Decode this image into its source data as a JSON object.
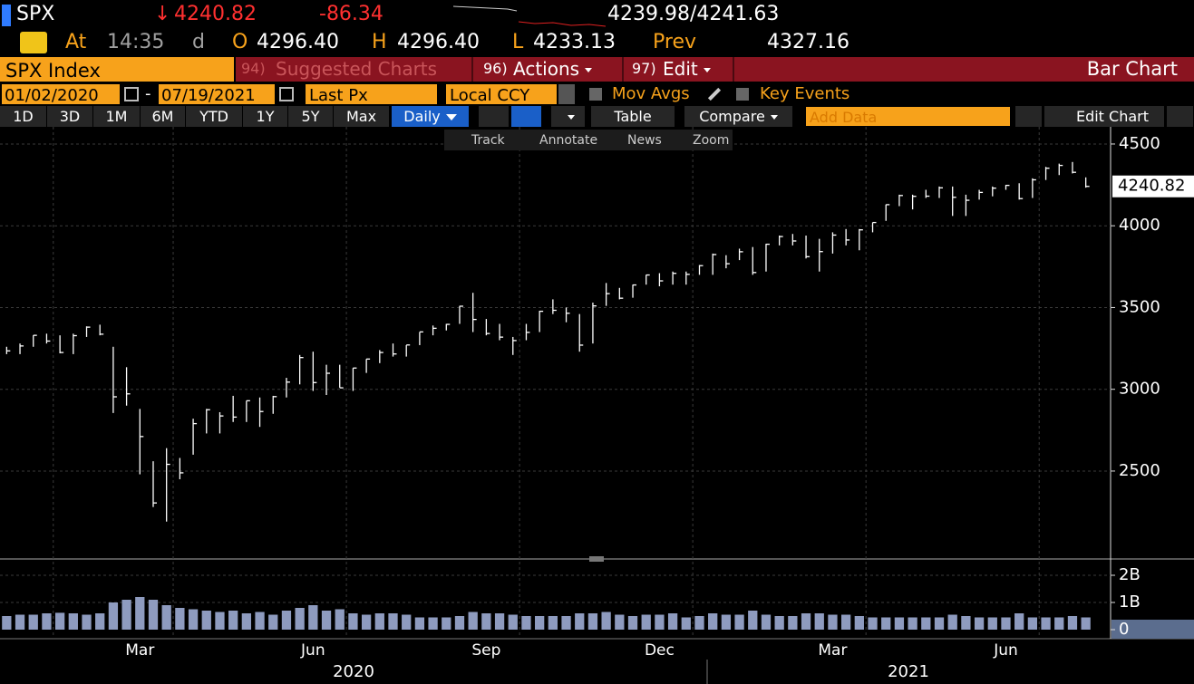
{
  "header": {
    "ticker": "SPX",
    "direction": "↓",
    "last": "4240.82",
    "change": "-86.34",
    "bid_ask": "4239.98/4241.63",
    "at": "At",
    "time": "14:35",
    "time_unit": "d",
    "open_label": "O",
    "open": "4296.40",
    "high_label": "H",
    "high": "4296.40",
    "low_label": "L",
    "low": "4233.13",
    "prev_label": "Prev",
    "prev": "4327.16"
  },
  "menu": {
    "security": "SPX Index",
    "suggested_num": "94)",
    "suggested": "Suggested Charts",
    "actions_num": "96)",
    "actions": "Actions",
    "edit_num": "97)",
    "edit": "Edit",
    "chart_kind": "Bar Chart"
  },
  "settings": {
    "start_date": "01/02/2020",
    "dash": "-",
    "end_date": "07/19/2021",
    "field": "Last Px",
    "currency": "Local CCY",
    "mov_avgs": "Mov Avgs",
    "key_events": "Key Events"
  },
  "toolbar": {
    "ranges": [
      "1D",
      "3D",
      "1M",
      "6M",
      "YTD",
      "1Y",
      "5Y",
      "Max"
    ],
    "frequency": "Daily",
    "table": "Table",
    "compare": "Compare",
    "add_data": "Add Data",
    "edit_chart": "Edit Chart"
  },
  "tools": [
    "Track",
    "Annotate",
    "News",
    "Zoom"
  ],
  "chart_data": [
    {
      "type": "ohlc",
      "color": "#ffffff",
      "categories": [
        null,
        null,
        null,
        null,
        null,
        null,
        null,
        null,
        null,
        null,
        "Mar",
        null,
        null,
        null,
        null,
        null,
        null,
        null,
        null,
        null,
        null,
        null,
        null,
        "Jun",
        null,
        null,
        null,
        null,
        null,
        null,
        null,
        null,
        null,
        null,
        null,
        null,
        "Sep",
        null,
        null,
        null,
        null,
        null,
        null,
        null,
        null,
        null,
        null,
        null,
        null,
        "Dec",
        null,
        null,
        null,
        null,
        null,
        null,
        null,
        null,
        null,
        null,
        null,
        null,
        "Mar",
        null,
        null,
        null,
        null,
        null,
        null,
        null,
        null,
        null,
        null,
        null,
        null,
        "Jun",
        null,
        null,
        null,
        null,
        null,
        null
      ],
      "x_groups": [
        "2020",
        "2021"
      ],
      "high": [
        3260,
        3280,
        3330,
        3340,
        3330,
        3340,
        3385,
        3395,
        3260,
        3135,
        2880,
        2560,
        2640,
        2580,
        2820,
        2880,
        2860,
        2960,
        2930,
        2950,
        2960,
        3070,
        3210,
        3230,
        3150,
        3150,
        3130,
        3185,
        3240,
        3280,
        3270,
        3350,
        3390,
        3400,
        3510,
        3590,
        3430,
        3400,
        3320,
        3400,
        3480,
        3550,
        3500,
        3460,
        3530,
        3650,
        3620,
        3640,
        3700,
        3710,
        3720,
        3720,
        3760,
        3830,
        3820,
        3860,
        3870,
        3890,
        3940,
        3950,
        3940,
        3920,
        3960,
        3980,
        3980,
        4020,
        4130,
        4190,
        4190,
        4220,
        4240,
        4240,
        4190,
        4220,
        4240,
        4250,
        4260,
        4290,
        4360,
        4380,
        4390,
        4296
      ],
      "low": [
        3215,
        3215,
        3260,
        3280,
        3220,
        3215,
        3320,
        3330,
        2855,
        2900,
        2480,
        2280,
        2191,
        2450,
        2600,
        2730,
        2730,
        2800,
        2800,
        2770,
        2850,
        2950,
        3030,
        2990,
        2965,
        3010,
        2990,
        3100,
        3160,
        3200,
        3200,
        3270,
        3330,
        3360,
        3400,
        3350,
        3330,
        3300,
        3210,
        3300,
        3350,
        3460,
        3410,
        3230,
        3280,
        3510,
        3550,
        3560,
        3640,
        3630,
        3640,
        3640,
        3700,
        3700,
        3740,
        3790,
        3700,
        3720,
        3880,
        3880,
        3800,
        3720,
        3830,
        3880,
        3850,
        3960,
        4030,
        4120,
        4100,
        4170,
        4170,
        4060,
        4060,
        4160,
        4180,
        4220,
        4160,
        4170,
        4280,
        4310,
        4320,
        4233
      ],
      "close": [
        3235,
        3265,
        3330,
        3295,
        3225,
        3328,
        3380,
        3337,
        2954,
        2972,
        2711,
        2305,
        2541,
        2489,
        2790,
        2875,
        2837,
        2830,
        2930,
        2864,
        2955,
        3044,
        3194,
        3041,
        3098,
        3009,
        3130,
        3185,
        3225,
        3216,
        3271,
        3351,
        3373,
        3397,
        3508,
        3427,
        3341,
        3319,
        3298,
        3348,
        3477,
        3483,
        3465,
        3270,
        3510,
        3585,
        3557,
        3638,
        3699,
        3663,
        3709,
        3703,
        3756,
        3824,
        3768,
        3841,
        3714,
        3887,
        3934,
        3907,
        3811,
        3842,
        3943,
        3913,
        3975,
        4020,
        4129,
        4185,
        4180,
        4181,
        4232,
        4174,
        4156,
        4204,
        4230,
        4247,
        4166,
        4281,
        4352,
        4369,
        4327,
        4240.82
      ],
      "last_value": 4240.82,
      "ylim": [
        1990,
        4605
      ],
      "yticks": [
        2500,
        3000,
        3500,
        4000,
        4500
      ],
      "grid": true
    },
    {
      "type": "bar",
      "color": "#8e9bbf",
      "values": [
        0.5,
        0.55,
        0.55,
        0.6,
        0.62,
        0.6,
        0.55,
        0.6,
        1.0,
        1.1,
        1.2,
        1.1,
        0.9,
        0.8,
        0.75,
        0.7,
        0.65,
        0.7,
        0.6,
        0.65,
        0.55,
        0.7,
        0.8,
        0.9,
        0.7,
        0.75,
        0.6,
        0.55,
        0.6,
        0.6,
        0.55,
        0.45,
        0.45,
        0.45,
        0.5,
        0.65,
        0.6,
        0.6,
        0.55,
        0.5,
        0.5,
        0.5,
        0.5,
        0.6,
        0.6,
        0.65,
        0.55,
        0.5,
        0.55,
        0.55,
        0.6,
        0.45,
        0.5,
        0.6,
        0.55,
        0.55,
        0.7,
        0.55,
        0.5,
        0.5,
        0.6,
        0.6,
        0.55,
        0.55,
        0.5,
        0.45,
        0.45,
        0.45,
        0.45,
        0.45,
        0.45,
        0.55,
        0.5,
        0.45,
        0.45,
        0.45,
        0.6,
        0.45,
        0.45,
        0.45,
        0.5,
        0.45
      ],
      "ylim": [
        0,
        2.5
      ],
      "yticks": [
        {
          "value": 2,
          "label": "2B"
        },
        {
          "value": 1,
          "label": "1B"
        },
        0
      ],
      "grid": true
    }
  ]
}
